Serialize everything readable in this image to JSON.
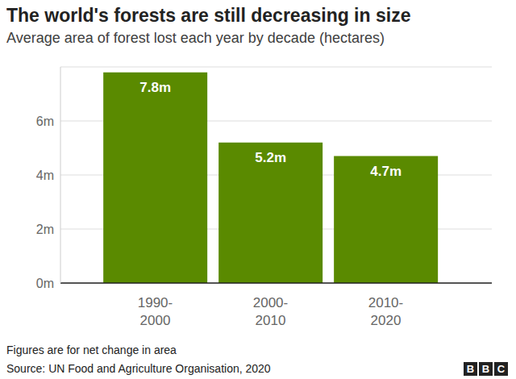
{
  "chart_data": {
    "type": "bar",
    "title": "The world's forests are still decreasing in size",
    "subtitle": "Average area of forest lost each year by decade (hectares)",
    "categories": [
      "1990-2000",
      "2000-2010",
      "2010-2020"
    ],
    "values": [
      7.8,
      5.2,
      4.7
    ],
    "value_labels": [
      "7.8m",
      "5.2m",
      "4.7m"
    ],
    "data_labels": true,
    "color": "#5a8a00",
    "ylim": [
      0,
      8
    ],
    "yticks": [
      {
        "value": 0,
        "label": "0m"
      },
      {
        "value": 2,
        "label": "2m"
      },
      {
        "value": 4,
        "label": "4m"
      },
      {
        "value": 6,
        "label": "6m"
      }
    ],
    "grid": true,
    "note": "Figures are for net change in area",
    "source": "Source: UN Food and Agriculture Organisation, 2020",
    "logo": "BBC"
  }
}
